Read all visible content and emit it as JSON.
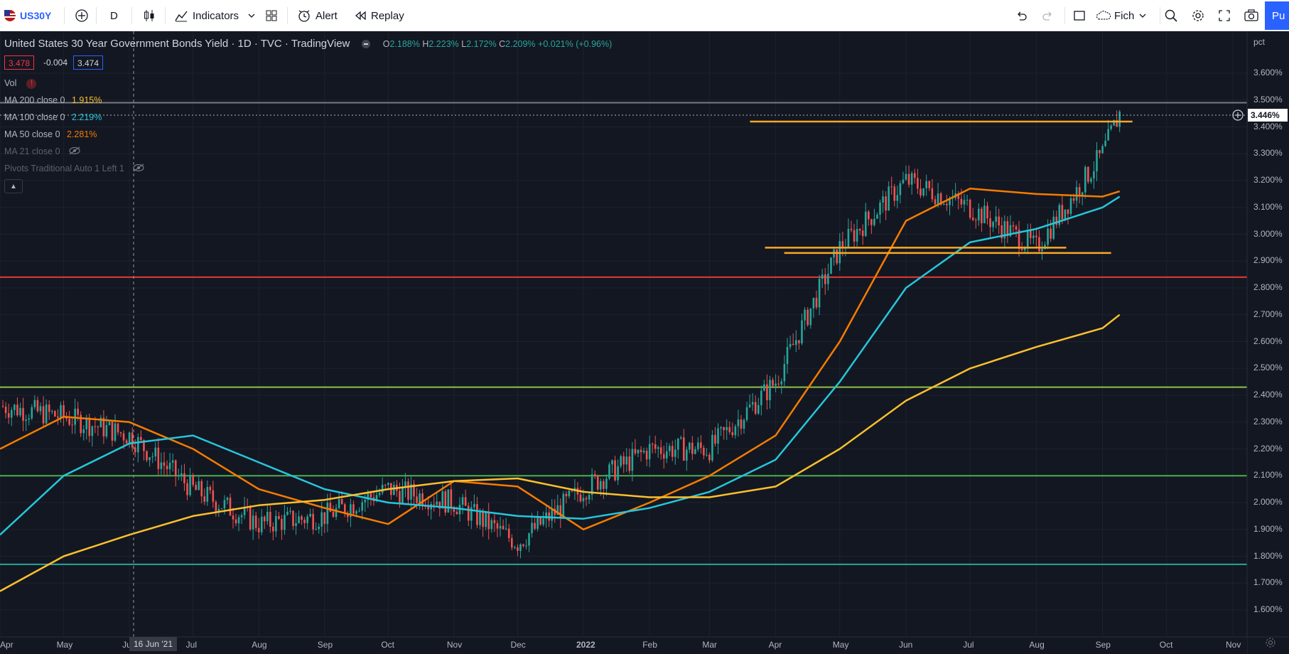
{
  "toolbar": {
    "symbol": "US30Y",
    "interval": "D",
    "indicators_label": "Indicators",
    "alert_label": "Alert",
    "replay_label": "Replay",
    "layout_label": "Fich",
    "publish_label": "Pu"
  },
  "legend": {
    "title": "United States 30 Year Government Bonds Yield · 1D · TVC · TradingView",
    "ohlc": {
      "o_key": "O",
      "o": "2.188%",
      "h_key": "H",
      "h": "2.223%",
      "l_key": "L",
      "l": "2.172%",
      "c_key": "C",
      "c": "2.209%",
      "change": "+0.021% (+0.96%)"
    },
    "bid": "3.478",
    "spread": "-0.004",
    "ask": "3.474",
    "vol_label": "Vol",
    "ma200_label": "MA 200 close 0",
    "ma200_value": "1.915%",
    "ma100_label": "MA 100 close 0",
    "ma100_value": "2.219%",
    "ma50_label": "MA 50 close 0",
    "ma50_value": "2.281%",
    "ma21_label": "MA 21 close 0",
    "pivots_label": "Pivots Traditional Auto 1 Left 1"
  },
  "price_axis": {
    "unit": "pct",
    "ticks": [
      "3.600%",
      "3.500%",
      "3.400%",
      "3.300%",
      "3.200%",
      "3.100%",
      "3.000%",
      "2.900%",
      "2.800%",
      "2.700%",
      "2.600%",
      "2.500%",
      "2.400%",
      "2.300%",
      "2.200%",
      "2.100%",
      "2.000%",
      "1.900%",
      "1.800%",
      "1.700%",
      "1.600%"
    ],
    "last_price": "3.446%"
  },
  "time_axis": {
    "labels": [
      "Apr",
      "May",
      "Jun",
      "Jul",
      "Aug",
      "Sep",
      "Oct",
      "Nov",
      "Dec",
      "2022",
      "Feb",
      "Mar",
      "Apr",
      "May",
      "Jun",
      "Jul",
      "Aug",
      "Sep",
      "Oct",
      "Nov"
    ],
    "cursor_date": "16 Jun '21"
  },
  "chart_data": {
    "type": "line",
    "title": "United States 30 Year Government Bonds Yield",
    "ylabel": "pct",
    "ylim": [
      1.55,
      3.65
    ],
    "x": [
      "2021-04-01",
      "2021-05-01",
      "2021-06-01",
      "2021-07-01",
      "2021-08-01",
      "2021-09-01",
      "2021-10-01",
      "2021-11-01",
      "2021-12-01",
      "2022-01-01",
      "2022-02-01",
      "2022-03-01",
      "2022-04-01",
      "2022-05-01",
      "2022-06-01",
      "2022-07-01",
      "2022-08-01",
      "2022-09-01",
      "2022-09-09"
    ],
    "series": [
      {
        "name": "US30Y",
        "color": "#26a69a",
        "values": [
          2.36,
          2.32,
          2.25,
          2.05,
          1.92,
          1.95,
          2.05,
          2.0,
          1.85,
          2.05,
          2.2,
          2.2,
          2.45,
          2.95,
          3.2,
          3.1,
          2.95,
          3.3,
          3.45
        ]
      },
      {
        "name": "MA 50",
        "color": "#f57c00",
        "values": [
          2.2,
          2.32,
          2.3,
          2.2,
          2.05,
          1.98,
          1.92,
          2.08,
          2.06,
          1.9,
          2.0,
          2.1,
          2.25,
          2.6,
          3.05,
          3.17,
          3.15,
          3.14,
          3.16
        ]
      },
      {
        "name": "MA 100",
        "color": "#26c6da",
        "values": [
          1.88,
          2.1,
          2.22,
          2.25,
          2.15,
          2.05,
          2.0,
          1.98,
          1.95,
          1.94,
          1.98,
          2.04,
          2.16,
          2.45,
          2.8,
          2.97,
          3.02,
          3.1,
          3.14
        ]
      },
      {
        "name": "MA 200",
        "color": "#fbc02d",
        "values": [
          1.67,
          1.8,
          1.88,
          1.95,
          1.99,
          2.01,
          2.05,
          2.08,
          2.09,
          2.04,
          2.02,
          2.02,
          2.06,
          2.2,
          2.38,
          2.5,
          2.58,
          2.65,
          2.7
        ]
      }
    ],
    "horizontal_lines": [
      {
        "value": 3.49,
        "color": "#787b86"
      },
      {
        "value": 2.84,
        "color": "#e53935"
      },
      {
        "value": 2.43,
        "color": "#8bc34a"
      },
      {
        "value": 2.1,
        "color": "#4caf50"
      },
      {
        "value": 1.77,
        "color": "#26a69a"
      }
    ],
    "drawn_segments": [
      {
        "from": "2022-03-20",
        "to": "2022-09-15",
        "value": 3.42,
        "color": "#f9a825"
      },
      {
        "from": "2022-03-27",
        "to": "2022-08-15",
        "value": 2.95,
        "color": "#f9a825"
      },
      {
        "from": "2022-04-05",
        "to": "2022-09-05",
        "value": 2.93,
        "color": "#f9a825"
      }
    ]
  }
}
